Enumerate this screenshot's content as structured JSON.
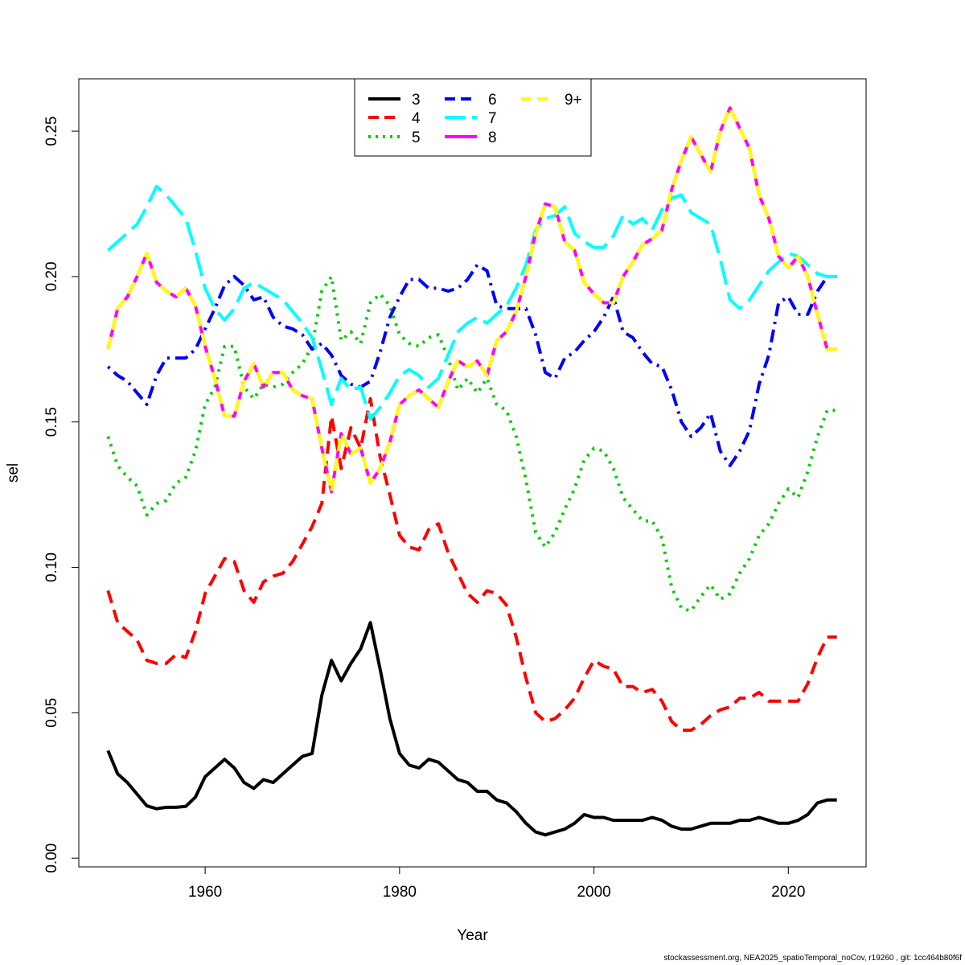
{
  "chart_data": {
    "type": "line",
    "xlabel": "Year",
    "ylabel": "sel",
    "xlim": [
      1947,
      2028
    ],
    "ylim": [
      -0.003,
      0.268
    ],
    "x_ticks": [
      "1960",
      "1980",
      "2000",
      "2020"
    ],
    "y_ticks": [
      "0.00",
      "0.05",
      "0.10",
      "0.15",
      "0.20",
      "0.25"
    ],
    "x_tick_values": [
      1960,
      1980,
      2000,
      2020
    ],
    "y_tick_values": [
      0.0,
      0.05,
      0.1,
      0.15,
      0.2,
      0.25
    ],
    "legend_position": "top-center",
    "grid": false,
    "x": [
      1950,
      1951,
      1952,
      1953,
      1954,
      1955,
      1956,
      1957,
      1958,
      1959,
      1960,
      1961,
      1962,
      1963,
      1964,
      1965,
      1966,
      1967,
      1968,
      1969,
      1970,
      1971,
      1972,
      1973,
      1974,
      1975,
      1976,
      1977,
      1978,
      1979,
      1980,
      1981,
      1982,
      1983,
      1984,
      1985,
      1986,
      1987,
      1988,
      1989,
      1990,
      1991,
      1992,
      1993,
      1994,
      1995,
      1996,
      1997,
      1998,
      1999,
      2000,
      2001,
      2002,
      2003,
      2004,
      2005,
      2006,
      2007,
      2008,
      2009,
      2010,
      2011,
      2012,
      2013,
      2014,
      2015,
      2016,
      2017,
      2018,
      2019,
      2020,
      2021,
      2022,
      2023,
      2024,
      2025
    ],
    "series": [
      {
        "name": "3",
        "color": "#000000",
        "dash": "solid",
        "values": [
          0.037,
          0.029,
          0.026,
          0.022,
          0.018,
          0.017,
          0.0175,
          0.0175,
          0.0178,
          0.021,
          0.028,
          0.031,
          0.034,
          0.031,
          0.026,
          0.024,
          0.027,
          0.026,
          0.029,
          0.032,
          0.035,
          0.036,
          0.056,
          0.068,
          0.061,
          0.067,
          0.072,
          0.081,
          0.065,
          0.048,
          0.036,
          0.032,
          0.031,
          0.034,
          0.033,
          0.03,
          0.027,
          0.026,
          0.023,
          0.023,
          0.02,
          0.019,
          0.016,
          0.012,
          0.009,
          0.008,
          0.009,
          0.01,
          0.012,
          0.015,
          0.014,
          0.014,
          0.013,
          0.013,
          0.013,
          0.013,
          0.014,
          0.013,
          0.011,
          0.01,
          0.01,
          0.011,
          0.012,
          0.012,
          0.012,
          0.013,
          0.013,
          0.014,
          0.013,
          0.012,
          0.012,
          0.013,
          0.015,
          0.019,
          0.02,
          0.02
        ]
      },
      {
        "name": "4",
        "color": "#ff0000",
        "dash": "dashed",
        "values": [
          0.092,
          0.081,
          0.078,
          0.075,
          0.068,
          0.067,
          0.067,
          0.07,
          0.069,
          0.078,
          0.091,
          0.097,
          0.103,
          0.102,
          0.092,
          0.088,
          0.095,
          0.097,
          0.098,
          0.102,
          0.108,
          0.114,
          0.122,
          0.152,
          0.134,
          0.148,
          0.141,
          0.158,
          0.138,
          0.125,
          0.111,
          0.107,
          0.106,
          0.113,
          0.115,
          0.105,
          0.098,
          0.091,
          0.088,
          0.092,
          0.091,
          0.087,
          0.076,
          0.062,
          0.05,
          0.047,
          0.048,
          0.051,
          0.055,
          0.062,
          0.068,
          0.066,
          0.065,
          0.059,
          0.059,
          0.057,
          0.058,
          0.054,
          0.047,
          0.044,
          0.044,
          0.046,
          0.049,
          0.051,
          0.052,
          0.055,
          0.055,
          0.057,
          0.054,
          0.054,
          0.054,
          0.054,
          0.06,
          0.069,
          0.076,
          0.076
        ]
      },
      {
        "name": "5",
        "color": "#00cd00",
        "dash": "dotted",
        "values": [
          0.145,
          0.135,
          0.131,
          0.128,
          0.118,
          0.122,
          0.123,
          0.129,
          0.131,
          0.14,
          0.156,
          0.162,
          0.176,
          0.176,
          0.162,
          0.158,
          0.163,
          0.162,
          0.163,
          0.167,
          0.17,
          0.176,
          0.195,
          0.2,
          0.178,
          0.181,
          0.177,
          0.191,
          0.194,
          0.19,
          0.18,
          0.177,
          0.176,
          0.179,
          0.18,
          0.172,
          0.161,
          0.165,
          0.16,
          0.165,
          0.156,
          0.154,
          0.145,
          0.13,
          0.112,
          0.107,
          0.112,
          0.12,
          0.127,
          0.137,
          0.141,
          0.14,
          0.134,
          0.124,
          0.12,
          0.116,
          0.116,
          0.11,
          0.093,
          0.086,
          0.085,
          0.09,
          0.094,
          0.089,
          0.091,
          0.098,
          0.103,
          0.111,
          0.115,
          0.122,
          0.127,
          0.124,
          0.133,
          0.145,
          0.154,
          0.154
        ]
      },
      {
        "name": "6",
        "color": "#0000ff",
        "dash": "dashdot",
        "values": [
          0.169,
          0.166,
          0.164,
          0.16,
          0.156,
          0.166,
          0.172,
          0.172,
          0.172,
          0.175,
          0.182,
          0.189,
          0.197,
          0.2,
          0.197,
          0.192,
          0.193,
          0.186,
          0.183,
          0.182,
          0.18,
          0.175,
          0.177,
          0.173,
          0.166,
          0.163,
          0.162,
          0.164,
          0.174,
          0.186,
          0.193,
          0.199,
          0.199,
          0.196,
          0.196,
          0.195,
          0.196,
          0.199,
          0.204,
          0.202,
          0.19,
          0.189,
          0.189,
          0.189,
          0.18,
          0.167,
          0.165,
          0.172,
          0.174,
          0.178,
          0.181,
          0.186,
          0.193,
          0.181,
          0.179,
          0.174,
          0.17,
          0.169,
          0.161,
          0.15,
          0.145,
          0.148,
          0.153,
          0.14,
          0.135,
          0.14,
          0.147,
          0.163,
          0.173,
          0.191,
          0.193,
          0.187,
          0.187,
          0.195,
          0.2,
          0.2
        ]
      },
      {
        "name": "7",
        "color": "#00ffff",
        "dash": "longdash",
        "values": [
          0.209,
          0.212,
          0.215,
          0.218,
          0.224,
          0.231,
          0.228,
          0.224,
          0.22,
          0.209,
          0.196,
          0.189,
          0.185,
          0.189,
          0.196,
          0.198,
          0.196,
          0.194,
          0.192,
          0.188,
          0.184,
          0.179,
          0.168,
          0.156,
          0.165,
          0.161,
          0.162,
          0.151,
          0.155,
          0.16,
          0.166,
          0.168,
          0.166,
          0.162,
          0.165,
          0.173,
          0.181,
          0.184,
          0.186,
          0.184,
          0.187,
          0.19,
          0.196,
          0.204,
          0.216,
          0.22,
          0.221,
          0.224,
          0.215,
          0.212,
          0.21,
          0.21,
          0.214,
          0.221,
          0.218,
          0.22,
          0.216,
          0.223,
          0.227,
          0.228,
          0.222,
          0.22,
          0.218,
          0.206,
          0.192,
          0.189,
          0.192,
          0.197,
          0.202,
          0.205,
          0.208,
          0.207,
          0.204,
          0.201,
          0.2,
          0.2
        ]
      },
      {
        "name": "8",
        "color": "#ff00ff",
        "dash": "solid",
        "values": [
          0.175,
          0.189,
          0.193,
          0.2,
          0.208,
          0.198,
          0.195,
          0.193,
          0.196,
          0.19,
          0.176,
          0.165,
          0.152,
          0.152,
          0.164,
          0.17,
          0.162,
          0.167,
          0.167,
          0.161,
          0.159,
          0.158,
          0.141,
          0.126,
          0.146,
          0.139,
          0.141,
          0.129,
          0.134,
          0.143,
          0.156,
          0.159,
          0.161,
          0.158,
          0.155,
          0.164,
          0.171,
          0.169,
          0.171,
          0.166,
          0.178,
          0.181,
          0.188,
          0.2,
          0.215,
          0.225,
          0.224,
          0.212,
          0.209,
          0.198,
          0.194,
          0.191,
          0.191,
          0.2,
          0.205,
          0.211,
          0.213,
          0.216,
          0.23,
          0.24,
          0.248,
          0.242,
          0.236,
          0.25,
          0.258,
          0.251,
          0.244,
          0.228,
          0.22,
          0.207,
          0.203,
          0.207,
          0.2,
          0.187,
          0.175,
          0.175
        ]
      },
      {
        "name": "9+",
        "color": "#ffff00",
        "dash": "dashed",
        "values": [
          0.175,
          0.189,
          0.193,
          0.2,
          0.208,
          0.198,
          0.195,
          0.193,
          0.196,
          0.19,
          0.176,
          0.165,
          0.152,
          0.152,
          0.164,
          0.17,
          0.162,
          0.167,
          0.167,
          0.161,
          0.159,
          0.158,
          0.141,
          0.126,
          0.146,
          0.139,
          0.141,
          0.129,
          0.134,
          0.143,
          0.156,
          0.159,
          0.161,
          0.158,
          0.155,
          0.164,
          0.171,
          0.169,
          0.171,
          0.166,
          0.178,
          0.181,
          0.188,
          0.2,
          0.215,
          0.225,
          0.224,
          0.212,
          0.209,
          0.198,
          0.194,
          0.191,
          0.191,
          0.2,
          0.205,
          0.211,
          0.213,
          0.216,
          0.23,
          0.24,
          0.248,
          0.242,
          0.236,
          0.25,
          0.258,
          0.251,
          0.244,
          0.228,
          0.22,
          0.207,
          0.203,
          0.207,
          0.2,
          0.187,
          0.175,
          0.175
        ]
      }
    ]
  },
  "footer_text": "stockassessment.org, NEA2025_spatioTemporal_noCov, r19260 , git: 1cc464b80f6f"
}
